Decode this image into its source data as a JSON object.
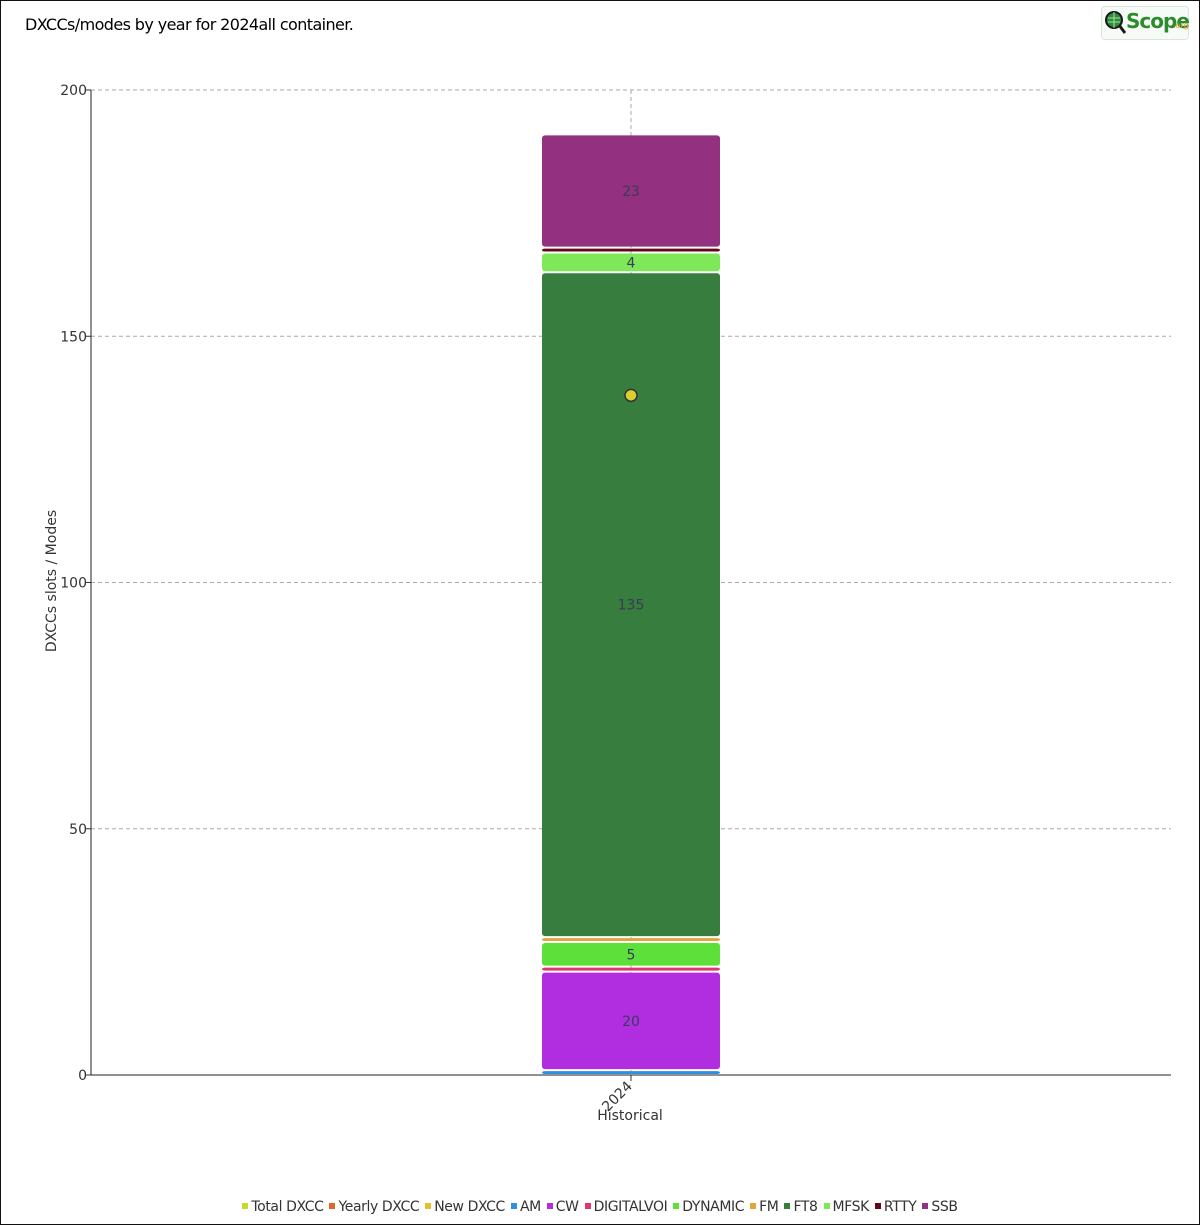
{
  "title": "DXCCs/modes by year for 2024all container.",
  "logo": {
    "text": "Scope",
    "suffix": ".org"
  },
  "chart_data": {
    "type": "bar",
    "stacked": true,
    "categories": [
      "2024"
    ],
    "xlabel": "Historical",
    "ylabel": "DXCCs slots / Modes",
    "ylim": [
      0,
      200
    ],
    "yticks": [
      0,
      50,
      100,
      150,
      200
    ],
    "grid": true,
    "legend_position": "bottom",
    "series": [
      {
        "name": "AM",
        "color": "#2f8fe0",
        "values": [
          1
        ]
      },
      {
        "name": "CW",
        "color": "#b02ee0",
        "values": [
          20
        ]
      },
      {
        "name": "DIGITALVOI",
        "color": "#e0366e",
        "values": [
          1
        ]
      },
      {
        "name": "DYNAMIC",
        "color": "#5ee03a",
        "values": [
          5
        ]
      },
      {
        "name": "FM",
        "color": "#e0a63a",
        "values": [
          1
        ]
      },
      {
        "name": "FT8",
        "color": "#367d3e",
        "values": [
          135
        ]
      },
      {
        "name": "MFSK",
        "color": "#7ee859",
        "values": [
          4
        ]
      },
      {
        "name": "RTTY",
        "color": "#64071c",
        "values": [
          1
        ]
      },
      {
        "name": "SSB",
        "color": "#943080",
        "values": [
          23
        ]
      }
    ],
    "points": [
      {
        "name": "Total DXCC",
        "color": "#d8cf2e",
        "x": "2024",
        "y": 138
      }
    ],
    "data_labels": [
      {
        "series": "CW",
        "text": "20"
      },
      {
        "series": "DYNAMIC",
        "text": "5"
      },
      {
        "series": "FT8",
        "text": "135"
      },
      {
        "series": "MFSK",
        "text": "4"
      },
      {
        "series": "SSB",
        "text": "23"
      }
    ],
    "legend": [
      {
        "label": "Total DXCC",
        "color": "#c7d92a"
      },
      {
        "label": "Yearly DXCC",
        "color": "#e0662a"
      },
      {
        "label": "New DXCC",
        "color": "#e0c22a"
      },
      {
        "label": "AM",
        "color": "#2f8fe0"
      },
      {
        "label": "CW",
        "color": "#b02ee0"
      },
      {
        "label": "DIGITALVOI",
        "color": "#e0366e"
      },
      {
        "label": "DYNAMIC",
        "color": "#5ee03a"
      },
      {
        "label": "FM",
        "color": "#e0a63a"
      },
      {
        "label": "FT8",
        "color": "#367d3e"
      },
      {
        "label": "MFSK",
        "color": "#7ee859"
      },
      {
        "label": "RTTY",
        "color": "#64071c"
      },
      {
        "label": "SSB",
        "color": "#943080"
      }
    ]
  }
}
